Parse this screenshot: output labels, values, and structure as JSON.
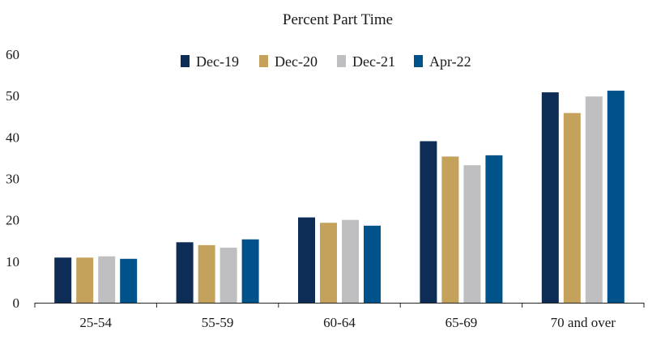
{
  "chart_data": {
    "type": "bar",
    "title": "Percent Part Time",
    "xlabel": "",
    "ylabel": "",
    "ylim": [
      0,
      60
    ],
    "yticks": [
      "0",
      "10",
      "20",
      "30",
      "40",
      "50",
      "60"
    ],
    "categories": [
      "25-54",
      "55-59",
      "60-64",
      "65-69",
      "70 and over"
    ],
    "grid": false,
    "legend_position": "top-center",
    "series": [
      {
        "name": "Dec-19",
        "color": "#0d2d57",
        "values": [
          10.9,
          14.6,
          20.6,
          39.0,
          50.8
        ]
      },
      {
        "name": "Dec-20",
        "color": "#c4a25c",
        "values": [
          10.9,
          13.9,
          19.3,
          35.3,
          45.8
        ]
      },
      {
        "name": "Dec-21",
        "color": "#bfbfc1",
        "values": [
          11.2,
          13.3,
          20.0,
          33.2,
          49.8
        ]
      },
      {
        "name": "Apr-22",
        "color": "#00538a",
        "values": [
          10.6,
          15.3,
          18.6,
          35.6,
          51.2
        ]
      }
    ]
  }
}
